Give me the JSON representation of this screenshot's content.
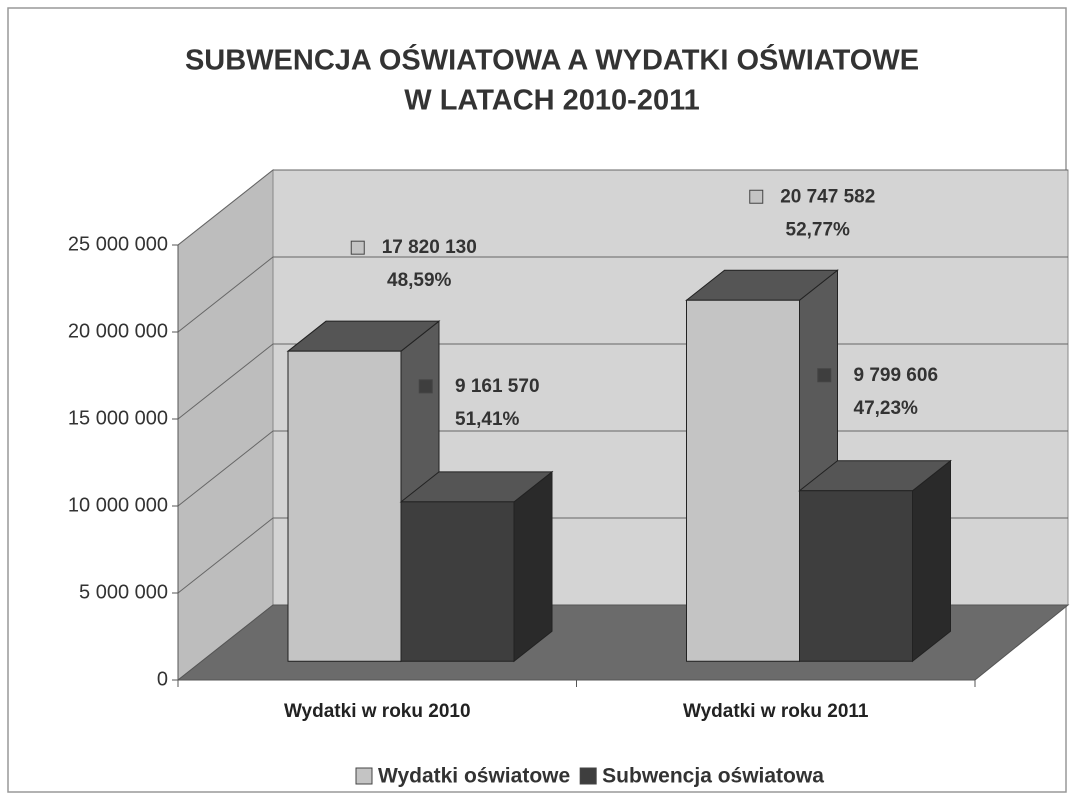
{
  "chart_data": {
    "type": "bar3d",
    "title": [
      "SUBWENCJA OŚWIATOWA A WYDATKI OŚWIATOWE",
      "W LATACH 2010-2011"
    ],
    "categories": [
      "Wydatki w roku 2010",
      "Wydatki w roku 2011"
    ],
    "series": [
      {
        "name": "Wydatki oświatowe",
        "color": "#c4c4c4",
        "side": "#5a5a5a",
        "values": [
          17820130,
          20747582
        ],
        "value_labels": [
          "17 820 130",
          "20 747 582"
        ],
        "percentages": [
          48.59,
          52.77
        ],
        "percentage_labels": [
          "48,59%",
          "52,77%"
        ]
      },
      {
        "name": "Subwencja oświatowa",
        "color": "#3e3e3e",
        "side": "#2a2a2a",
        "values": [
          9161570,
          9799606
        ],
        "value_labels": [
          "9 161 570",
          "9 799 606"
        ],
        "percentages": [
          51.41,
          47.23
        ],
        "percentage_labels": [
          "51,41%",
          "47,23%"
        ]
      }
    ],
    "ylim": [
      0,
      25000000
    ],
    "yticks": [
      0,
      {
        "value": 5000000,
        "label": "5 000 000"
      },
      {
        "value": 10000000,
        "label": "10 000 000"
      },
      {
        "value": 15000000,
        "label": "15 000 000"
      },
      {
        "value": 20000000,
        "label": "20 000 000"
      },
      {
        "value": 25000000,
        "label": "25 000 000"
      }
    ],
    "grid": true,
    "legend": "bottom"
  }
}
